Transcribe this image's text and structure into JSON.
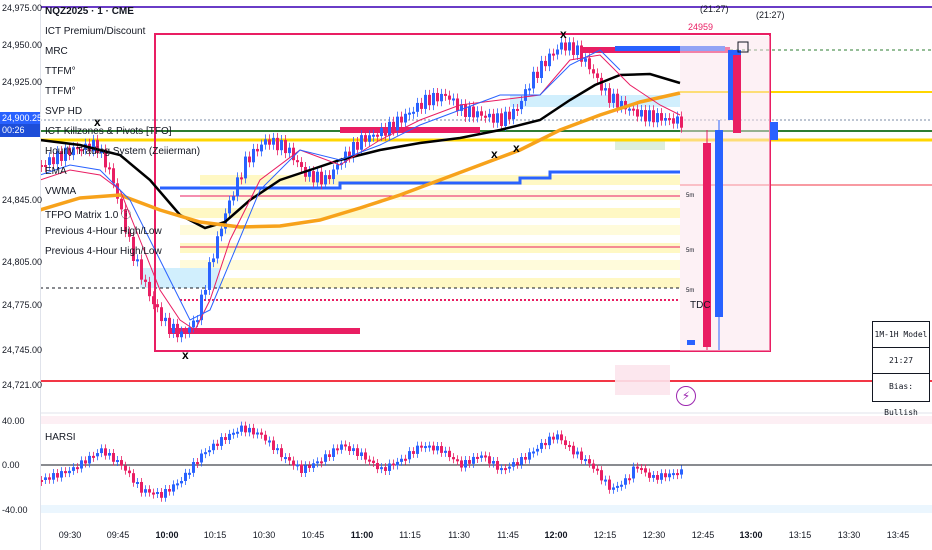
{
  "symbol": "NQZ2025 · 1 · CME",
  "indicators": [
    "ICT Premium/Discount",
    "MRC",
    "TTFM°",
    "TTFM°",
    "SVP HD",
    "ICT Killzones & Pivots [TFO]",
    "Hourly Trading System (Zeiierman)",
    "EMA",
    "VWMA",
    "TFPO Matrix 1.0 ⓘ",
    "Previous 4-Hour High/Low",
    "Previous 4-Hour High/Low"
  ],
  "price_axis": {
    "ticks": [
      "24,975.00",
      "24,950.00",
      "24,925.00",
      "24,900.25",
      "00:26",
      "24,845.00",
      "24,805.00",
      "24,775.00",
      "24,745.00",
      "24,721.00"
    ]
  },
  "oscillator": {
    "name": "HARSI",
    "ticks": [
      "40.00",
      "0.00",
      "-40.00"
    ]
  },
  "time_axis": [
    "09:30",
    "09:45",
    "10:00",
    "10:15",
    "10:30",
    "10:45",
    "11:00",
    "11:15",
    "11:30",
    "11:45",
    "12:00",
    "12:15",
    "12:30",
    "12:45",
    "13:00",
    "13:15",
    "13:30",
    "13:45"
  ],
  "annotations": {
    "level_label": "24959",
    "time_label_1": "(21:27)",
    "time_label_2": "(21:27)",
    "tdc": "TDC",
    "five_m_labels": [
      "5m",
      "5m",
      "5m"
    ]
  },
  "model_panel": {
    "title": "1M-1H Model",
    "time": "21:27",
    "bias": "Bias: Bullish"
  },
  "colors": {
    "up": "#2962ff",
    "down": "#e91e63",
    "ema": "#000000",
    "vwma": "#f7a21b",
    "premium_line": "#6a3cc7",
    "red_line": "#f23645",
    "green_line": "#2e7d32",
    "yellow_line": "#ffd600"
  }
}
